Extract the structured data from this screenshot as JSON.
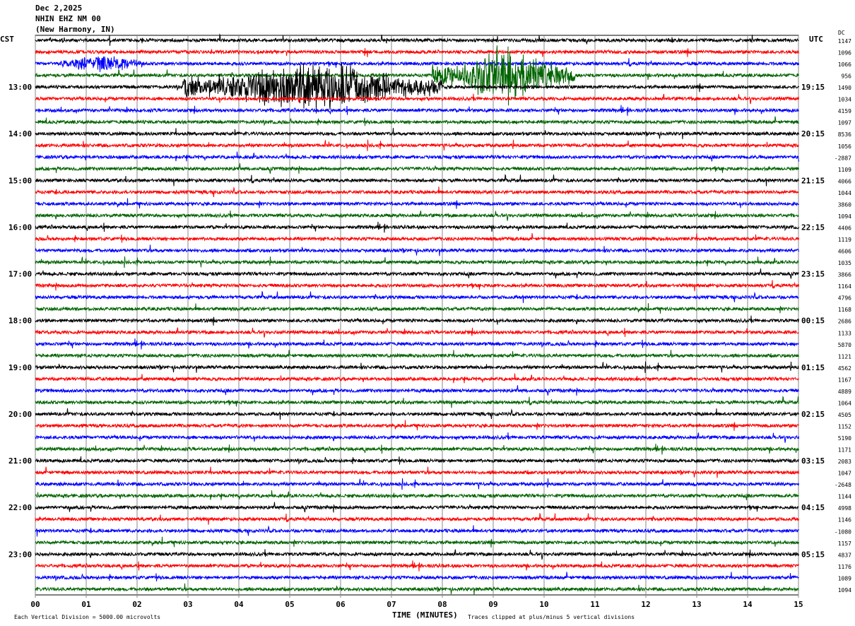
{
  "header": {
    "date": "Dec 2,2025",
    "station": "NHIN EHZ NM 00",
    "location": "(New Harmony, IN)"
  },
  "left_axis_title": "CST",
  "right_axis_title": "UTC",
  "dc_title": "DC",
  "footer": {
    "scale_note": "Each Vertical Division = 5000.00 microvolts",
    "xlabel": "TIME (MINUTES)",
    "clip_note": "Traces clipped at plus/minus 5 vertical divisions"
  },
  "chart_data": {
    "type": "line",
    "subtype": "helicorder",
    "xlabel": "TIME (MINUTES)",
    "xlim": [
      0,
      15
    ],
    "x_ticks": [
      "00",
      "01",
      "02",
      "03",
      "04",
      "05",
      "06",
      "07",
      "08",
      "09",
      "10",
      "11",
      "12",
      "13",
      "14",
      "15"
    ],
    "grid": "vertical lines every minute",
    "trace_colors": [
      "#000000",
      "#ff0000",
      "#0000ff",
      "#006400"
    ],
    "left_labels": [
      {
        "row": 4,
        "text": "13:00"
      },
      {
        "row": 8,
        "text": "14:00"
      },
      {
        "row": 12,
        "text": "15:00"
      },
      {
        "row": 16,
        "text": "16:00"
      },
      {
        "row": 20,
        "text": "17:00"
      },
      {
        "row": 24,
        "text": "18:00"
      },
      {
        "row": 28,
        "text": "19:00"
      },
      {
        "row": 32,
        "text": "20:00"
      },
      {
        "row": 36,
        "text": "21:00"
      },
      {
        "row": 40,
        "text": "22:00"
      },
      {
        "row": 44,
        "text": "23:00"
      }
    ],
    "right_labels": [
      {
        "row": 4,
        "text": "19:15"
      },
      {
        "row": 8,
        "text": "20:15"
      },
      {
        "row": 12,
        "text": "21:15"
      },
      {
        "row": 16,
        "text": "22:15"
      },
      {
        "row": 20,
        "text": "23:15"
      },
      {
        "row": 24,
        "text": "00:15"
      },
      {
        "row": 28,
        "text": "01:15"
      },
      {
        "row": 32,
        "text": "02:15"
      },
      {
        "row": 36,
        "text": "03:15"
      },
      {
        "row": 40,
        "text": "04:15"
      },
      {
        "row": 44,
        "text": "05:15"
      }
    ],
    "dc_values": [
      "1147",
      "1096",
      "1066",
      "956",
      "1490",
      "1034",
      "4159",
      "1097",
      "8536",
      "1056",
      "-2887",
      "1109",
      "4066",
      "1044",
      "3860",
      "1094",
      "4406",
      "1119",
      "4606",
      "1035",
      "3866",
      "1164",
      "4796",
      "1168",
      "2686",
      "1133",
      "5870",
      "1121",
      "4562",
      "1167",
      "4889",
      "1064",
      "4505",
      "1152",
      "5190",
      "1171",
      "2083",
      "1047",
      "-2648",
      "1144",
      "4998",
      "1146",
      "-1080",
      "1157",
      "4837",
      "1176",
      "1089",
      "1094"
    ],
    "events": [
      {
        "row": 2,
        "start_min": 0.5,
        "end_min": 2.1,
        "level": "moderate"
      },
      {
        "row": 3,
        "start_min": 7.8,
        "end_min": 10.6,
        "level": "clipped"
      },
      {
        "row": 4,
        "start_min": 2.9,
        "end_min": 8.0,
        "level": "clipped"
      }
    ]
  }
}
